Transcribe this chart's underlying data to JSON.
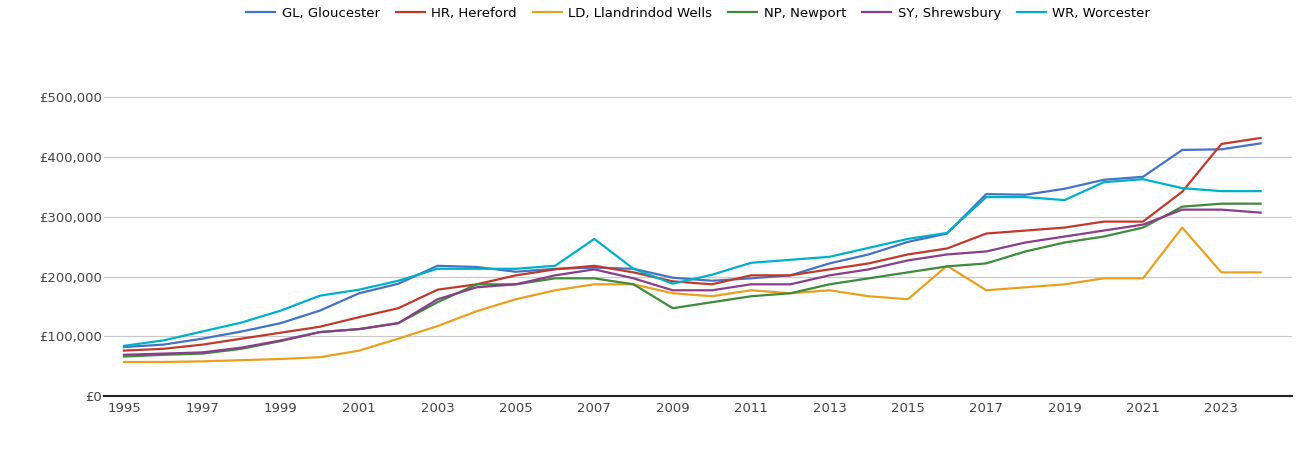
{
  "years": [
    1995,
    1996,
    1997,
    1998,
    1999,
    2000,
    2001,
    2002,
    2003,
    2004,
    2005,
    2006,
    2007,
    2008,
    2009,
    2010,
    2011,
    2012,
    2013,
    2014,
    2015,
    2016,
    2017,
    2018,
    2019,
    2020,
    2021,
    2022,
    2023,
    2024
  ],
  "GL_Gloucester": [
    82000,
    86000,
    96000,
    108000,
    122000,
    143000,
    172000,
    188000,
    218000,
    216000,
    208000,
    213000,
    215000,
    213000,
    198000,
    193000,
    197000,
    202000,
    222000,
    237000,
    258000,
    272000,
    338000,
    337000,
    347000,
    362000,
    367000,
    412000,
    413000,
    423000
  ],
  "HR_Hereford": [
    76000,
    79000,
    86000,
    96000,
    106000,
    116000,
    132000,
    147000,
    178000,
    187000,
    202000,
    212000,
    218000,
    207000,
    192000,
    187000,
    202000,
    202000,
    212000,
    222000,
    237000,
    247000,
    272000,
    277000,
    282000,
    292000,
    292000,
    342000,
    422000,
    432000
  ],
  "LD_Llandrindod": [
    57000,
    57000,
    58000,
    60000,
    62000,
    65000,
    76000,
    96000,
    117000,
    142000,
    162000,
    177000,
    187000,
    187000,
    172000,
    167000,
    177000,
    172000,
    177000,
    167000,
    162000,
    218000,
    177000,
    182000,
    187000,
    197000,
    197000,
    282000,
    207000,
    207000
  ],
  "NP_Newport": [
    66000,
    69000,
    71000,
    79000,
    92000,
    107000,
    112000,
    122000,
    157000,
    187000,
    187000,
    197000,
    197000,
    187000,
    147000,
    157000,
    167000,
    172000,
    187000,
    197000,
    207000,
    217000,
    222000,
    242000,
    257000,
    267000,
    282000,
    317000,
    322000,
    322000
  ],
  "SY_Shrewsbury": [
    69000,
    71000,
    73000,
    81000,
    93000,
    107000,
    112000,
    122000,
    162000,
    182000,
    187000,
    202000,
    212000,
    197000,
    177000,
    177000,
    187000,
    187000,
    202000,
    212000,
    227000,
    237000,
    242000,
    257000,
    267000,
    277000,
    287000,
    312000,
    312000,
    307000
  ],
  "WR_Worcester": [
    84000,
    93000,
    108000,
    123000,
    143000,
    168000,
    178000,
    193000,
    213000,
    213000,
    213000,
    218000,
    263000,
    213000,
    188000,
    203000,
    223000,
    228000,
    233000,
    248000,
    263000,
    273000,
    333000,
    333000,
    328000,
    358000,
    363000,
    348000,
    343000,
    343000
  ],
  "colors": {
    "GL_Gloucester": "#4472C4",
    "HR_Hereford": "#C0392B",
    "LD_Llandrindod": "#E8A020",
    "NP_Newport": "#3D8B3D",
    "SY_Shrewsbury": "#8B3D8B",
    "WR_Worcester": "#00B0C8"
  },
  "legend_labels": {
    "GL_Gloucester": "GL, Gloucester",
    "HR_Hereford": "HR, Hereford",
    "LD_Llandrindod": "LD, Llandrindod Wells",
    "NP_Newport": "NP, Newport",
    "SY_Shrewsbury": "SY, Shrewsbury",
    "WR_Worcester": "WR, Worcester"
  },
  "ylim": [
    0,
    550000
  ],
  "yticks": [
    0,
    100000,
    200000,
    300000,
    400000,
    500000
  ],
  "xlim": [
    1994.5,
    2024.8
  ],
  "xticks": [
    1995,
    1997,
    1999,
    2001,
    2003,
    2005,
    2007,
    2009,
    2011,
    2013,
    2015,
    2017,
    2019,
    2021,
    2023
  ],
  "background_color": "#FFFFFF",
  "grid_color": "#C8C8C8",
  "line_width": 1.6
}
